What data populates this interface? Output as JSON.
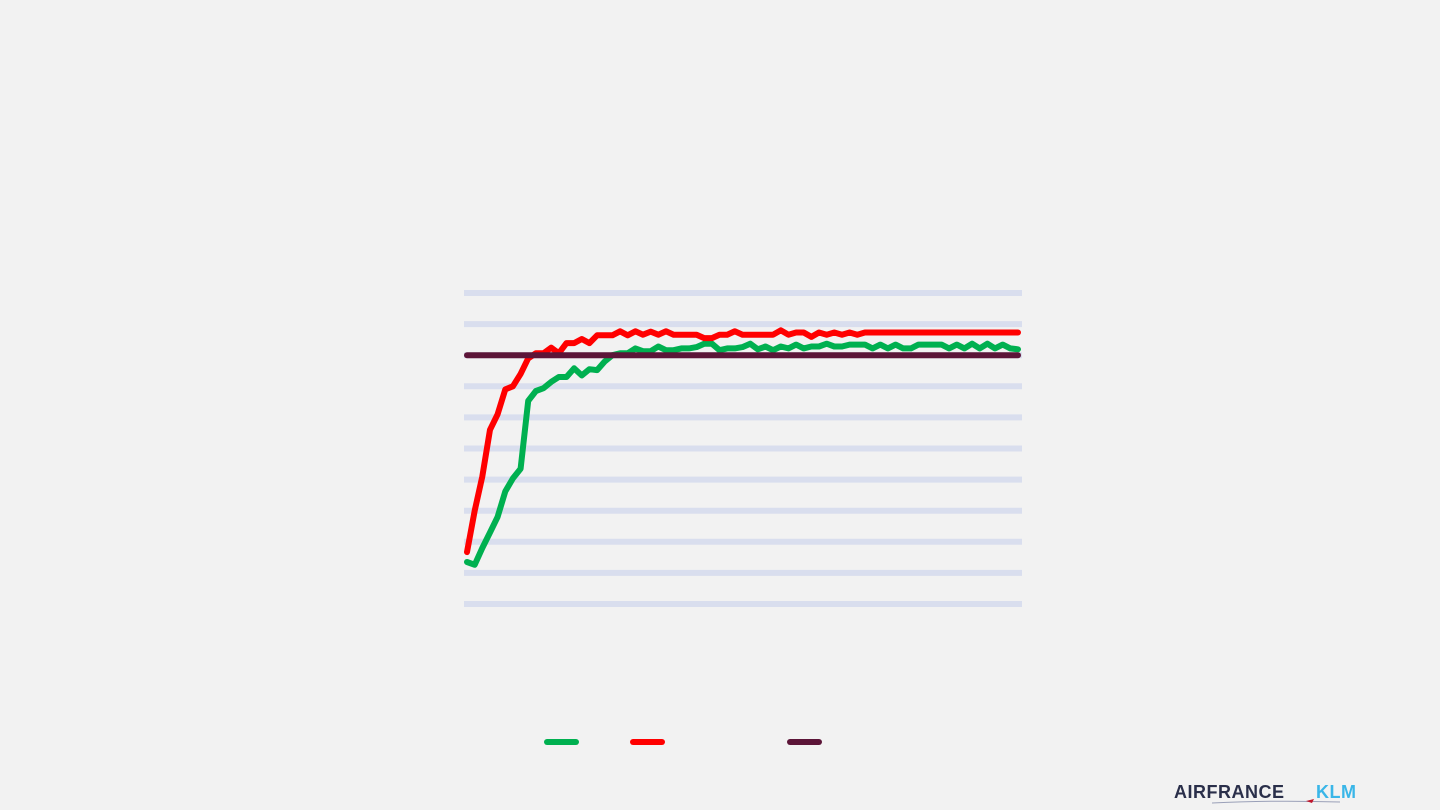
{
  "colors": {
    "background": "#f2f2f2",
    "gridline": "#d9deee",
    "green_series": "#00b050",
    "red_series": "#ff0000",
    "target_line": "#5c1538",
    "logo_dark": "#2a2f4a",
    "logo_blue": "#3ab6e8"
  },
  "logo": {
    "brand_a": "AIRFRANCE",
    "brand_b": "KLM",
    "icon": "airfrance-klm-logo-icon"
  },
  "chart_data": {
    "type": "line",
    "title": "",
    "xlabel": "",
    "ylabel": "",
    "grid": true,
    "legend": "bottom",
    "ylim": [
      0,
      100
    ],
    "gridline_values": [
      0,
      10,
      20,
      30,
      40,
      50,
      60,
      70,
      80,
      90,
      100
    ],
    "x": [
      0,
      1,
      2,
      3,
      4,
      5,
      6,
      7,
      8,
      9,
      10,
      11,
      12,
      13,
      14,
      15,
      16,
      17,
      18,
      19,
      20,
      21,
      22,
      23,
      24,
      25,
      26,
      27,
      28,
      29,
      30,
      31,
      32,
      33,
      34,
      35,
      36,
      37,
      38,
      39,
      40,
      41,
      42,
      43,
      44,
      45,
      46,
      47,
      48,
      49,
      50,
      51,
      52,
      53,
      54,
      55,
      56,
      57,
      58,
      59,
      60,
      61,
      62,
      63,
      64,
      65,
      66,
      67,
      68,
      69,
      70,
      71,
      72
    ],
    "series": [
      {
        "key": "green",
        "values": [
          13.5,
          12.6,
          18,
          23,
          28,
          36.2,
          40.4,
          43.5,
          65.3,
          68.5,
          69.4,
          71.4,
          73,
          73,
          75.8,
          73.5,
          75.5,
          75.2,
          78,
          80,
          80.6,
          80.6,
          82.2,
          81.3,
          81.3,
          82.8,
          81.6,
          81.6,
          82.2,
          82.2,
          82.6,
          83.7,
          83.7,
          81.6,
          82.2,
          82.2,
          82.6,
          83.7,
          81.9,
          82.8,
          81.6,
          82.8,
          82.2,
          83.4,
          82.2,
          82.8,
          82.8,
          83.7,
          82.8,
          82.8,
          83.4,
          83.4,
          83.4,
          82.2,
          83.4,
          82.2,
          83.4,
          82.2,
          82.2,
          83.4,
          83.4,
          83.4,
          83.4,
          82.2,
          83.4,
          82.2,
          83.7,
          82.2,
          83.7,
          82.2,
          83.4,
          82.2,
          81.9
        ],
        "display_values": [
          13.5,
          12.6,
          18,
          23,
          28,
          36.2,
          40.4,
          43.5,
          65.3,
          68.5,
          69.4,
          71.4,
          73,
          73,
          75.8,
          73.5,
          75.5,
          75.2,
          78,
          80,
          80.6,
          80.6,
          82.2,
          81.3,
          81.3,
          82.8,
          81.6,
          81.6,
          82.2,
          82.2,
          82.6,
          83.7,
          83.7,
          81.6,
          82.2,
          82.2,
          82.6,
          83.7,
          81.9,
          82.8,
          81.6,
          82.8,
          82.2,
          83.4,
          82.2,
          82.8,
          82.8,
          83.7,
          82.8,
          82.8,
          83.4,
          83.4,
          83.4,
          82.2,
          83.4,
          82.2,
          83.4,
          82.2,
          82.2,
          83.4,
          83.4,
          83.4,
          83.4,
          82.2,
          83.4,
          82.2,
          83.7,
          82.2,
          83.7,
          82.2,
          83.4,
          82.2,
          81.9
        ]
      },
      {
        "key": "red",
        "values": [
          16.7,
          30,
          41,
          56,
          64,
          72.3,
          75,
          77.5,
          80.5,
          80.5,
          81.7,
          83,
          81.7,
          83,
          83.3,
          84.5,
          84,
          84.5,
          86,
          86,
          86,
          86.8,
          86.8,
          86.8,
          86.8,
          86.8,
          86.8,
          86.8,
          86.8,
          86.8,
          86.8,
          86.8,
          86.8,
          86.8,
          86.8,
          86.8,
          86.8,
          86.8,
          86.8,
          86.8,
          86.8,
          86.8,
          86.8,
          86.8,
          86.8,
          86.8,
          86.8,
          86.8,
          86.8,
          86.8,
          86.8,
          86.8,
          86.8,
          86.8,
          86.8,
          86.8,
          86.8,
          86.8,
          86.8,
          86.8,
          86.8,
          86.8,
          86.8,
          86.8,
          86.8,
          86.8,
          86.8,
          86.8,
          86.8,
          86.8,
          86.8,
          86.8,
          86.8
        ],
        "display_values": [
          16.7,
          30,
          41,
          56,
          61,
          69,
          70,
          74,
          79,
          80.6,
          80.6,
          82.4,
          80.6,
          83.9,
          83.9,
          85.2,
          83.9,
          86.4,
          86.4,
          86.4,
          87.7,
          86.4,
          87.7,
          86.6,
          87.6,
          86.6,
          87.7,
          86.6,
          86.6,
          86.6,
          86.6,
          85.5,
          85.5,
          86.6,
          86.6,
          87.7,
          86.6,
          86.6,
          86.6,
          86.6,
          86.6,
          88,
          86.6,
          87.3,
          87.3,
          85.9,
          87.3,
          86.6,
          87.3,
          86.6,
          87.3,
          86.6,
          87.3,
          87.3,
          87.3,
          87.3,
          87.3,
          87.3,
          87.3,
          87.3,
          87.3,
          87.3,
          87.3,
          87.3,
          87.3,
          87.3,
          87.3,
          87.3,
          87.3,
          87.3,
          87.3,
          87.3,
          87.3
        ]
      },
      {
        "key": "target",
        "values": [
          80,
          80,
          80,
          80,
          80,
          80,
          80,
          80,
          80,
          80,
          80,
          80,
          80,
          80,
          80,
          80,
          80,
          80,
          80,
          80,
          80,
          80,
          80,
          80,
          80,
          80,
          80,
          80,
          80,
          80,
          80,
          80,
          80,
          80,
          80,
          80,
          80,
          80,
          80,
          80,
          80,
          80,
          80,
          80,
          80,
          80,
          80,
          80,
          80,
          80,
          80,
          80,
          80,
          80,
          80,
          80,
          80,
          80,
          80,
          80,
          80,
          80,
          80,
          80,
          80,
          80,
          80,
          80,
          80,
          80,
          80,
          80,
          80
        ]
      }
    ]
  }
}
